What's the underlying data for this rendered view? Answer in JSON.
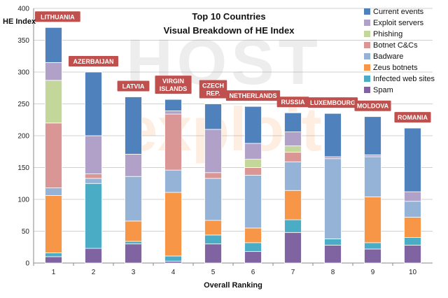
{
  "watermark": {
    "line1": "HOST",
    "line2": "exploit"
  },
  "chart_data": {
    "type": "bar",
    "stacked": true,
    "title": "Top 10 Countries",
    "subtitle": "Visual Breakdown of HE Index",
    "xlabel": "Overall Ranking",
    "ylabel": "HE Index",
    "ylim": [
      0,
      400
    ],
    "yticks": [
      0,
      50,
      100,
      150,
      200,
      250,
      300,
      350,
      400
    ],
    "grid": true,
    "legend_position": "top-right",
    "categories": [
      "1",
      "2",
      "3",
      "4",
      "5",
      "6",
      "7",
      "8",
      "9",
      "10"
    ],
    "countries": [
      "LITHUANIA",
      "AZERBAIJAN",
      "LATVIA",
      "VIRGIN ISLANDS",
      "CZECH REP.",
      "NETHERLANDS",
      "RUSSIA",
      "LUXEMBOURG",
      "MOLDOVA",
      "ROMANIA"
    ],
    "country_label_lines": [
      [
        "LITHUANIA"
      ],
      [
        "AZERBAIJAN"
      ],
      [
        "LATVIA"
      ],
      [
        "VIRGIN",
        "ISLANDS"
      ],
      [
        "CZECH",
        "REP."
      ],
      [
        "NETHERLANDS"
      ],
      [
        "RUSSIA"
      ],
      [
        "LUXEMBOURG"
      ],
      [
        "MOLDOVA"
      ],
      [
        "ROMANIA"
      ]
    ],
    "series": [
      {
        "name": "Spam",
        "color": "#8064A2",
        "values": [
          10,
          23,
          30,
          3,
          30,
          18,
          48,
          28,
          22,
          28
        ]
      },
      {
        "name": "Infected web sites",
        "color": "#4BACC6",
        "values": [
          6,
          102,
          4,
          8,
          14,
          14,
          20,
          10,
          10,
          12
        ]
      },
      {
        "name": "Zeus botnets",
        "color": "#F79646",
        "values": [
          90,
          0,
          32,
          100,
          23,
          23,
          46,
          0,
          72,
          32
        ]
      },
      {
        "name": "Badware",
        "color": "#95B3D7",
        "values": [
          12,
          8,
          70,
          35,
          66,
          83,
          45,
          126,
          63,
          25
        ]
      },
      {
        "name": "Botnet C&Cs",
        "color": "#DA9694",
        "values": [
          102,
          7,
          0,
          88,
          9,
          12,
          15,
          0,
          0,
          0
        ]
      },
      {
        "name": "Phishing",
        "color": "#C4D79B",
        "values": [
          67,
          0,
          0,
          0,
          0,
          13,
          10,
          0,
          0,
          0
        ]
      },
      {
        "name": "Exploit servers",
        "color": "#B1A0C7",
        "values": [
          28,
          60,
          35,
          5,
          68,
          25,
          22,
          3,
          3,
          15
        ]
      },
      {
        "name": "Current events",
        "color": "#4F81BD",
        "values": [
          55,
          100,
          90,
          18,
          40,
          58,
          30,
          68,
          60,
          100
        ]
      }
    ],
    "legend_order": [
      "Current events",
      "Exploit servers",
      "Phishing",
      "Botnet C&Cs",
      "Badware",
      "Zeus botnets",
      "Infected web sites",
      "Spam"
    ],
    "country_label_color": "#C0504D"
  }
}
